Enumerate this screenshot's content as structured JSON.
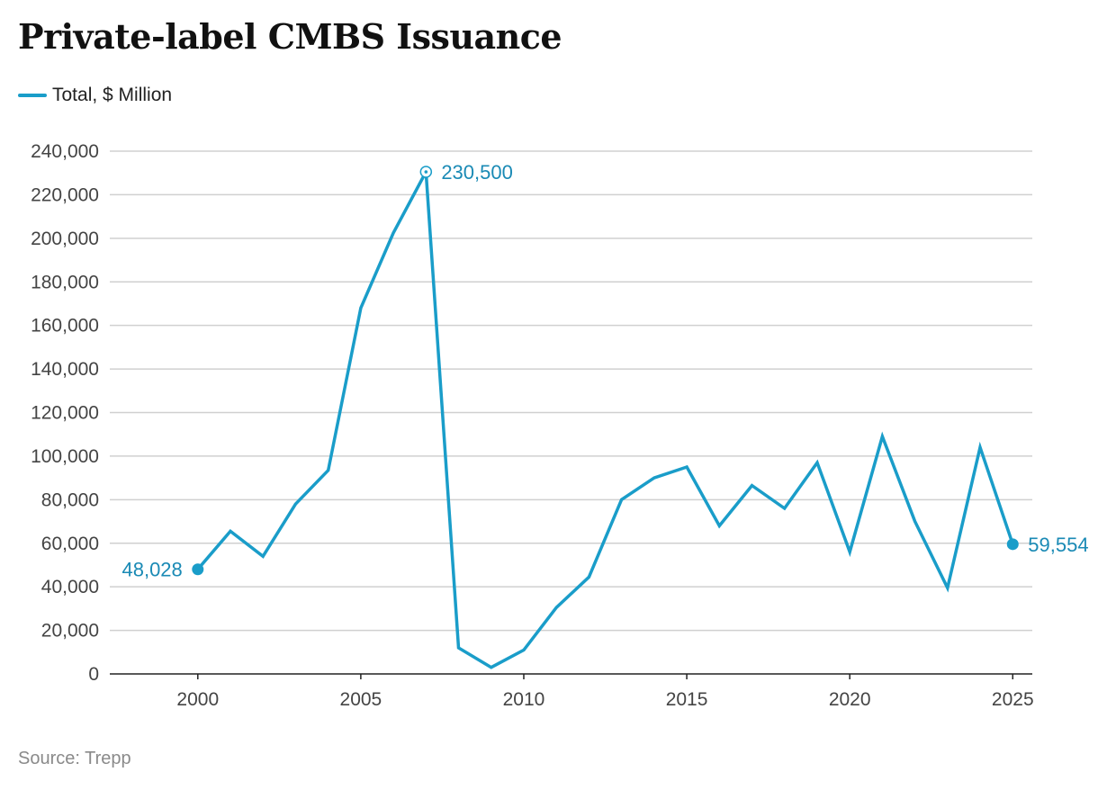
{
  "chart_data": {
    "type": "line",
    "title": "Private-label CMBS Issuance",
    "subtitle": "",
    "xlabel": "",
    "ylabel": "",
    "legend": {
      "placement": "top-left",
      "entries": [
        "Total, $ Million"
      ]
    },
    "source": "Source: Trepp",
    "ylim": [
      0,
      240000
    ],
    "xlim": [
      1997.3,
      2025.6
    ],
    "grid": true,
    "y_ticks": [
      0,
      20000,
      40000,
      60000,
      80000,
      100000,
      120000,
      140000,
      160000,
      180000,
      200000,
      220000,
      240000
    ],
    "y_tick_labels": [
      "0",
      "20,000",
      "40,000",
      "60,000",
      "80,000",
      "100,000",
      "120,000",
      "140,000",
      "160,000",
      "180,000",
      "200,000",
      "220,000",
      "240,000"
    ],
    "x_ticks": [
      2000,
      2005,
      2010,
      2015,
      2020,
      2025
    ],
    "x_tick_labels": [
      "2000",
      "2005",
      "2010",
      "2015",
      "2020",
      "2025"
    ],
    "series": [
      {
        "name": "Total, $ Million",
        "color": "#1a9dc9",
        "x": [
          2000,
          2001,
          2002,
          2003,
          2004,
          2005,
          2006,
          2007,
          2008,
          2009,
          2010,
          2011,
          2012,
          2013,
          2014,
          2015,
          2016,
          2017,
          2018,
          2019,
          2020,
          2021,
          2022,
          2023,
          2024,
          2025
        ],
        "values": [
          48028,
          65500,
          54000,
          78000,
          93500,
          168000,
          202500,
          230500,
          12000,
          3000,
          11000,
          30500,
          44500,
          80000,
          90000,
          95000,
          68000,
          86500,
          76000,
          97000,
          56000,
          109000,
          70000,
          39500,
          104000,
          59554
        ]
      }
    ],
    "annotations": [
      {
        "x": 2000,
        "value": 48028,
        "text": "48,028",
        "marker": "filled",
        "position": "left"
      },
      {
        "x": 2007,
        "value": 230500,
        "text": "230,500",
        "marker": "hollow",
        "position": "right"
      },
      {
        "x": 2025,
        "value": 59554,
        "text": "59,554",
        "marker": "filled",
        "position": "right"
      }
    ],
    "colors": {
      "label": "#1a8ab5",
      "grid": "#d0d0d0",
      "axis": "#222222"
    }
  }
}
